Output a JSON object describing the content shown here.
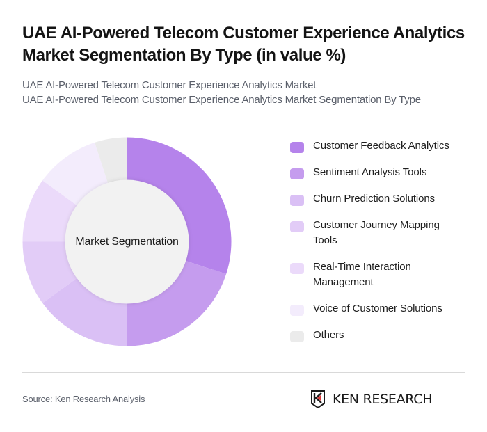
{
  "header": {
    "title": "UAE AI-Powered Telecom Customer Experience Analytics Market Segmentation By Type (in value %)",
    "subtitle_line1": "UAE AI-Powered Telecom Customer Experience Analytics Market",
    "subtitle_line2": "UAE AI-Powered Telecom Customer Experience Analytics Market Segmentation By Type"
  },
  "chart": {
    "center_label": "Market Segmentation"
  },
  "legend": {
    "items": [
      {
        "label": "Customer Feedback Analytics",
        "color": "#B583EB"
      },
      {
        "label": "Sentiment Analysis Tools",
        "color": "#C59CEE"
      },
      {
        "label": "Churn Prediction Solutions",
        "color": "#DAC0F5"
      },
      {
        "label": "Customer Journey Mapping Tools",
        "color": "#E2CCF7"
      },
      {
        "label": "Real-Time Interaction Management",
        "color": "#EBDAFA"
      },
      {
        "label": "Voice of Customer Solutions",
        "color": "#F3ECFC"
      },
      {
        "label": "Others",
        "color": "#EBEBEB"
      }
    ]
  },
  "footer": {
    "source": "Source: Ken Research Analysis",
    "logo_text": "KEN RESEARCH"
  },
  "chart_data": {
    "type": "pie",
    "title": "UAE AI-Powered Telecom Customer Experience Analytics Market Segmentation By Type (in value %)",
    "subtitle": "UAE AI-Powered Telecom Customer Experience Analytics Market Segmentation By Type",
    "center_label": "Market Segmentation",
    "donut": true,
    "categories": [
      "Customer Feedback Analytics",
      "Sentiment Analysis Tools",
      "Churn Prediction Solutions",
      "Customer Journey Mapping Tools",
      "Real-Time Interaction Management",
      "Voice of Customer Solutions",
      "Others"
    ],
    "values": [
      30,
      20,
      15,
      10,
      10,
      10,
      5
    ],
    "colors": [
      "#B583EB",
      "#C59CEE",
      "#DAC0F5",
      "#E2CCF7",
      "#EBDAFA",
      "#F3ECFC",
      "#EBEBEB"
    ],
    "unit": "%",
    "legend_position": "right"
  }
}
